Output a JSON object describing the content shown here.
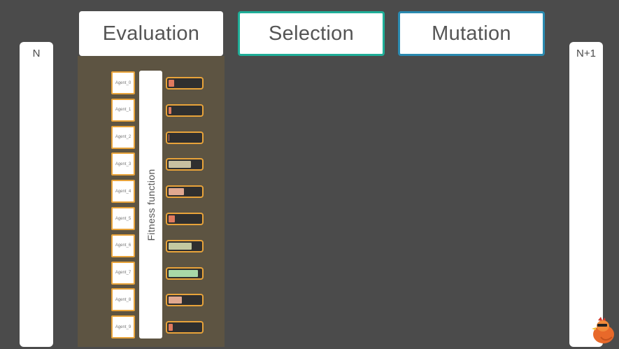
{
  "columns": {
    "left_label": "N",
    "right_label": "N+1"
  },
  "steps": {
    "evaluation": "Evaluation",
    "selection": "Selection",
    "mutation": "Mutation"
  },
  "fitness_label": "Fitness function",
  "colors": {
    "selection_border": "#1fae98",
    "mutation_border": "#2a8ab0",
    "agent_border": "#e8a33a",
    "panel": "#5d5442"
  },
  "agents": [
    {
      "label": "Agent_0",
      "fitness": 0.18,
      "color": "#e07a5f"
    },
    {
      "label": "Agent_1",
      "fitness": 0.08,
      "color": "#e07a5f"
    },
    {
      "label": "Agent_2",
      "fitness": 0.02,
      "color": "#e07a5f"
    },
    {
      "label": "Agent_3",
      "fitness": 0.7,
      "color": "#c8c0a0"
    },
    {
      "label": "Agent_4",
      "fitness": 0.48,
      "color": "#e0a890"
    },
    {
      "label": "Agent_5",
      "fitness": 0.2,
      "color": "#e07a5f"
    },
    {
      "label": "Agent_6",
      "fitness": 0.72,
      "color": "#c3c8a0"
    },
    {
      "label": "Agent_7",
      "fitness": 0.92,
      "color": "#a8d8a8"
    },
    {
      "label": "Agent_8",
      "fitness": 0.42,
      "color": "#e0a890"
    },
    {
      "label": "Agent_9",
      "fitness": 0.12,
      "color": "#e07a5f"
    }
  ]
}
